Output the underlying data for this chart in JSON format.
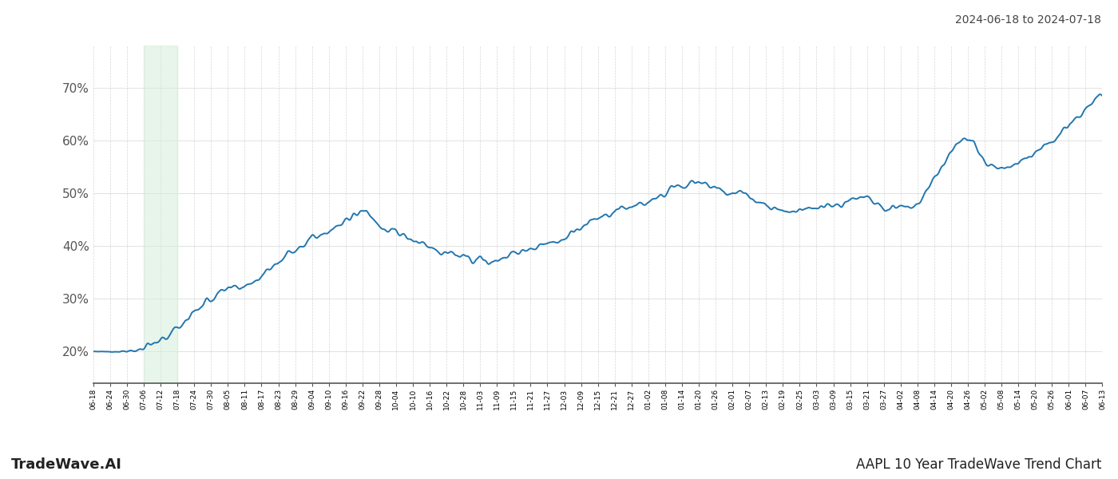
{
  "title_right": "2024-06-18 to 2024-07-18",
  "footer_left": "TradeWave.AI",
  "footer_right": "AAPL 10 Year TradeWave Trend Chart",
  "line_color": "#2176ae",
  "line_width": 1.4,
  "shade_color": "#d4edda",
  "shade_alpha": 0.55,
  "background_color": "#ffffff",
  "grid_color": "#cccccc",
  "ylim": [
    14,
    78
  ],
  "yticks": [
    20,
    30,
    40,
    50,
    60,
    70
  ],
  "x_labels": [
    "06-18",
    "06-24",
    "06-30",
    "07-06",
    "07-12",
    "07-18",
    "07-24",
    "07-30",
    "08-05",
    "08-11",
    "08-17",
    "08-23",
    "08-29",
    "09-04",
    "09-10",
    "09-16",
    "09-22",
    "09-28",
    "10-04",
    "10-10",
    "10-16",
    "10-22",
    "10-28",
    "11-03",
    "11-09",
    "11-15",
    "11-21",
    "11-27",
    "12-03",
    "12-09",
    "12-15",
    "12-21",
    "12-27",
    "01-02",
    "01-08",
    "01-14",
    "01-20",
    "01-26",
    "02-01",
    "02-07",
    "02-13",
    "02-19",
    "02-25",
    "03-03",
    "03-09",
    "03-15",
    "03-21",
    "03-27",
    "04-02",
    "04-08",
    "04-14",
    "04-20",
    "04-26",
    "05-02",
    "05-08",
    "05-14",
    "05-20",
    "05-26",
    "06-01",
    "06-07",
    "06-13"
  ],
  "shade_label_start": "07-06",
  "shade_label_end": "07-18",
  "keypoints_x": [
    0,
    1,
    2,
    3,
    4,
    5,
    6,
    7,
    8,
    9,
    10,
    11,
    12,
    13,
    14,
    15,
    16,
    17,
    18,
    19,
    20,
    21,
    22,
    23,
    24,
    25,
    26,
    27,
    28,
    29,
    30,
    31,
    32,
    33,
    34,
    35,
    36,
    37,
    38,
    39,
    40,
    41,
    42,
    43,
    44,
    45,
    46,
    47,
    48,
    49,
    50,
    51,
    52,
    53,
    54,
    55,
    56,
    57,
    58,
    59,
    60
  ],
  "keypoints_y": [
    20.0,
    20.0,
    20.1,
    20.5,
    22.0,
    24.5,
    27.5,
    30.0,
    31.5,
    32.5,
    34.5,
    37.0,
    39.5,
    41.5,
    43.0,
    44.5,
    46.8,
    44.0,
    42.5,
    41.0,
    39.8,
    38.5,
    38.0,
    37.5,
    37.0,
    38.5,
    39.5,
    40.5,
    41.5,
    43.5,
    45.0,
    46.5,
    47.5,
    48.5,
    50.0,
    51.5,
    52.0,
    51.0,
    50.0,
    49.0,
    47.5,
    46.5,
    47.0,
    47.5,
    48.0,
    48.5,
    49.0,
    47.0,
    47.5,
    48.0,
    53.0,
    57.5,
    60.5,
    56.0,
    54.5,
    55.5,
    57.5,
    60.0,
    62.5,
    66.0,
    68.5
  ]
}
